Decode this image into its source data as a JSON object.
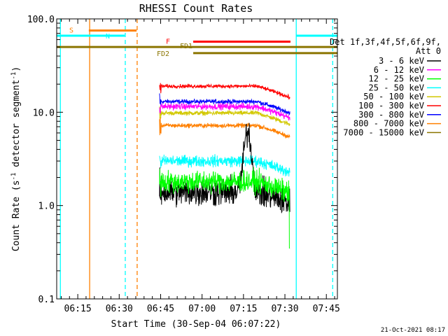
{
  "chart_data": {
    "type": "line",
    "title": "RHESSI Count Rates",
    "xlabel": "Start Time (30-Sep-04 06:07:22)",
    "ylabel_main": "Count Rate (s",
    "ylabel_sup1": "-1",
    "ylabel_mid": " detector segment",
    "ylabel_sup2": "-1",
    "ylabel_end": ")",
    "x_range_minutes": [
      367.37,
      469.0
    ],
    "y_scale": "log",
    "y_range": [
      0.1,
      100.0
    ],
    "x_ticks": [
      {
        "minute": 375,
        "label": "06:15"
      },
      {
        "minute": 390,
        "label": "06:30"
      },
      {
        "minute": 405,
        "label": "06:45"
      },
      {
        "minute": 420,
        "label": "07:00"
      },
      {
        "minute": 435,
        "label": "07:15"
      },
      {
        "minute": 450,
        "label": "07:30"
      },
      {
        "minute": 465,
        "label": "07:45"
      }
    ],
    "y_ticks": [
      {
        "value": 0.1,
        "label": "0.1"
      },
      {
        "value": 1.0,
        "label": "1.0"
      },
      {
        "value": 10.0,
        "label": "10.0"
      },
      {
        "value": 100.0,
        "label": "100.0"
      }
    ],
    "legend": {
      "header1": "Det 1f,3f,4f,5f,6f,9f,",
      "header2": "Att 0",
      "position": "right"
    },
    "data_window_minutes": [
      404.6,
      451.8
    ],
    "series": [
      {
        "name": "3 - 6 keV",
        "color": "#000000",
        "level": 1.4,
        "noise": 0.45,
        "peak": {
          "minute": 436.5,
          "value": 6.2,
          "width": 1.6
        }
      },
      {
        "name": "6 - 12 keV",
        "color": "#ff00ff",
        "level": 11.5,
        "noise": 0.1,
        "peak": null
      },
      {
        "name": "12 - 25 keV",
        "color": "#00ff00",
        "level": 1.8,
        "noise": 0.35,
        "peak": null
      },
      {
        "name": "25 - 50 keV",
        "color": "#00ffff",
        "level": 3.0,
        "noise": 0.18,
        "peak": null
      },
      {
        "name": "50 - 100 keV",
        "color": "#d2c800",
        "level": 9.8,
        "noise": 0.07,
        "peak": null
      },
      {
        "name": "100 - 300 keV",
        "color": "#ff0000",
        "level": 19.0,
        "noise": 0.06,
        "peak": null
      },
      {
        "name": "300 - 800 keV",
        "color": "#0000ff",
        "level": 13.0,
        "noise": 0.07,
        "peak": null
      },
      {
        "name": "800 - 7000 keV",
        "color": "#ff8000",
        "level": 7.2,
        "noise": 0.07,
        "peak": null
      },
      {
        "name": "7000 - 15000 keV",
        "color": "#8b7500",
        "level": null,
        "noise": 0,
        "peak": null
      }
    ],
    "markers": [
      {
        "label": "S",
        "color": "#ff8000",
        "type": "bar",
        "minute_start": 379.0,
        "minute_end": 396.3,
        "value": 75.0
      },
      {
        "label": "N",
        "color": "#00ffff",
        "type": "bar",
        "minute_start": 367.4,
        "minute_end": 392.0,
        "value": 66.0
      },
      {
        "label": "N",
        "color": "#00ffff",
        "type": "bar",
        "minute_start": 454.0,
        "minute_end": 469.0,
        "value": 66.0
      },
      {
        "label": "F",
        "color": "#ff0000",
        "type": "bar",
        "minute_start": 416.8,
        "minute_end": 452.0,
        "value": 57.0
      },
      {
        "label": "FD1",
        "color": "#8b7500",
        "type": "bar",
        "minute_start": 367.4,
        "minute_end": 469.0,
        "value": 50.0
      },
      {
        "label": "FD2",
        "color": "#8b7500",
        "type": "bar",
        "minute_start": 416.8,
        "minute_end": 469.0,
        "value": 43.0
      }
    ],
    "vlines": [
      {
        "minute": 368.7,
        "color": "#00ffff",
        "dashed": false
      },
      {
        "minute": 379.3,
        "color": "#ff8000",
        "dashed": false
      },
      {
        "minute": 392.2,
        "color": "#00ffff",
        "dashed": true
      },
      {
        "minute": 396.5,
        "color": "#ff8000",
        "dashed": true
      },
      {
        "minute": 454.1,
        "color": "#00ffff",
        "dashed": false
      },
      {
        "minute": 467.3,
        "color": "#00ffff",
        "dashed": true
      }
    ],
    "grid": false
  },
  "footer_timestamp": "21-Oct-2021 08:17"
}
